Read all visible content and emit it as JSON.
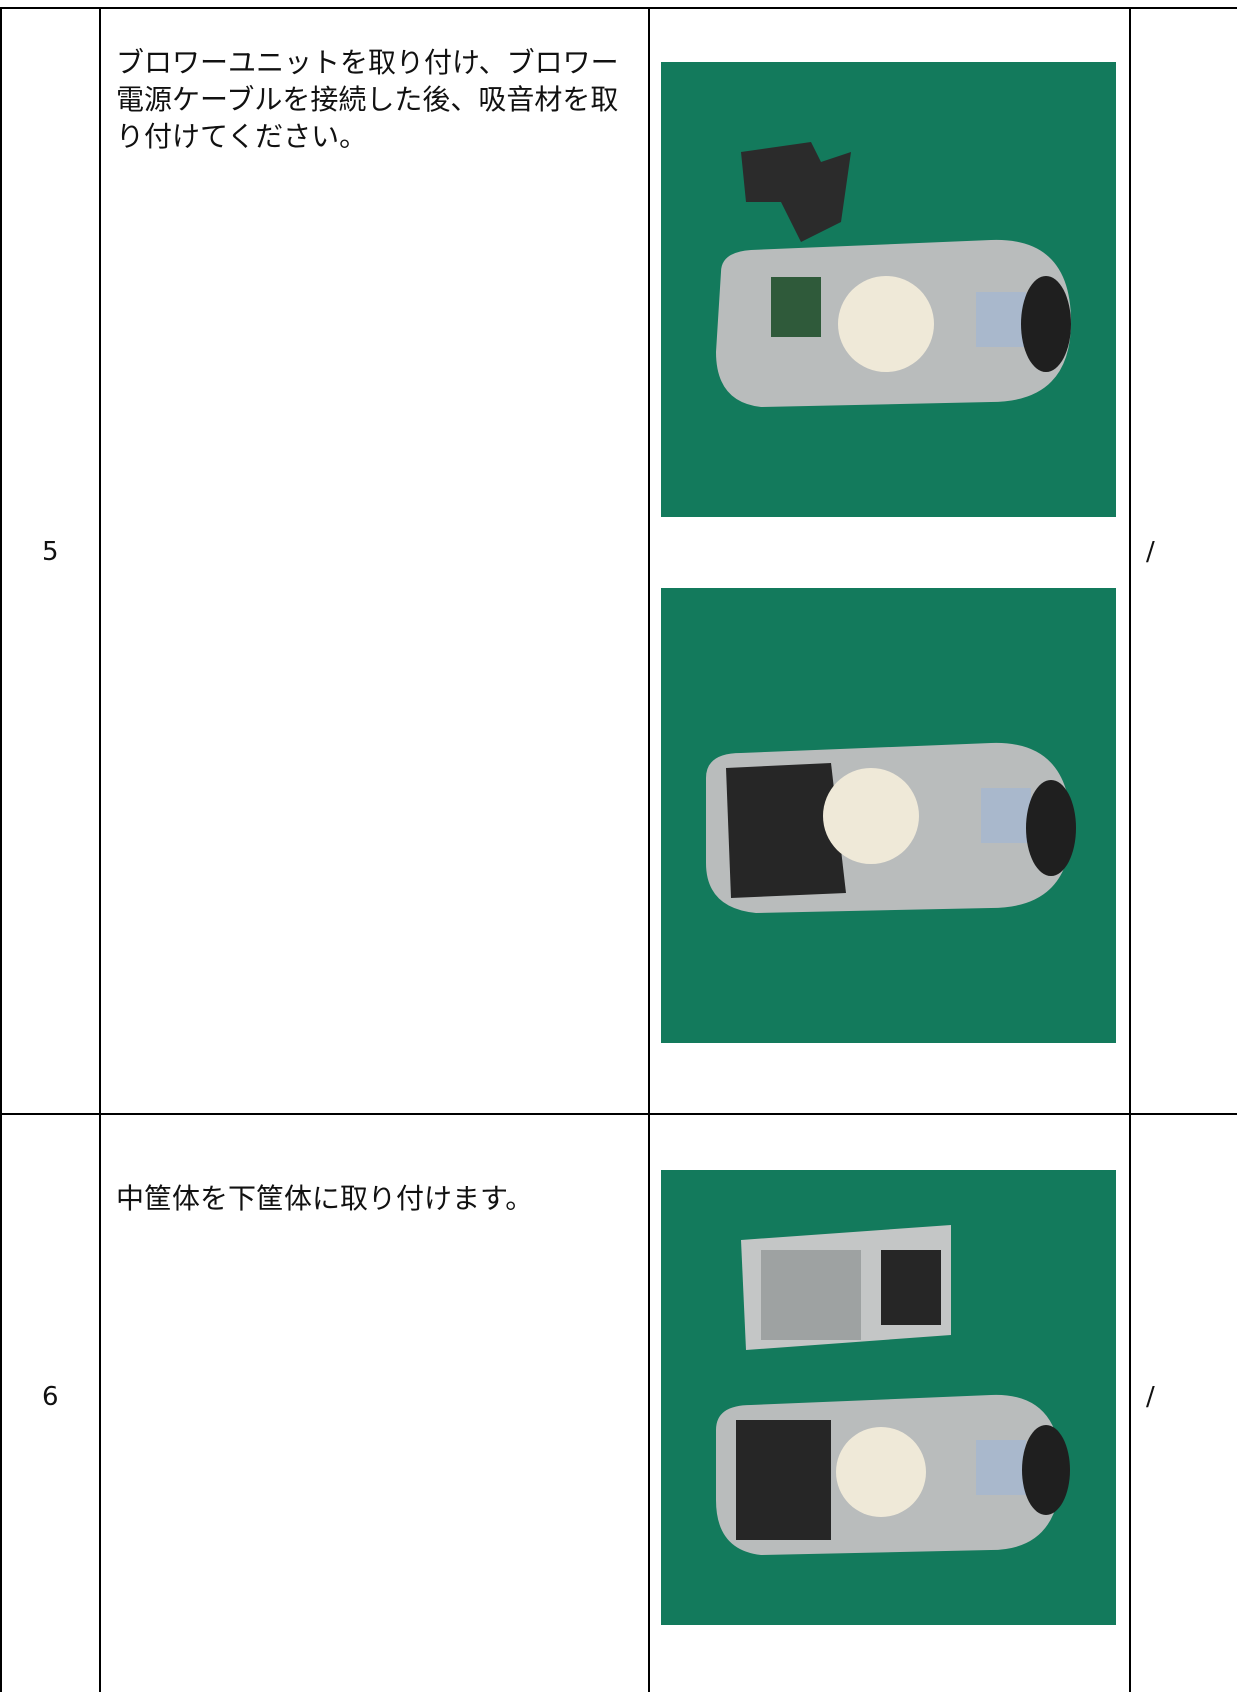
{
  "table": {
    "rows": [
      {
        "step": "5",
        "text": "ブロワーユニットを取り付け、ブロワー電源ケーブルを接続した後、吸音材を取り付けてください。",
        "note": "/"
      },
      {
        "step": "6",
        "text": "中筐体を下筐体に取り付けます。",
        "note": "/"
      }
    ]
  }
}
